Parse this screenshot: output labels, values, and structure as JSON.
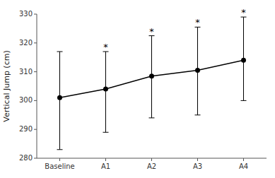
{
  "chart_data": {
    "type": "line",
    "ylabel": "Vertical Jump (cm)",
    "categories": [
      "Baseline",
      "A1",
      "A2",
      "A3",
      "A4"
    ],
    "values": [
      301.0,
      304.0,
      308.5,
      310.5,
      314.0
    ],
    "upper_errors": [
      16.0,
      13.0,
      14.0,
      15.0,
      15.0
    ],
    "lower_errors": [
      18.0,
      15.0,
      14.5,
      15.5,
      14.0
    ],
    "annotations": [
      {
        "category": "A1",
        "text": "*"
      },
      {
        "category": "A2",
        "text": "*"
      },
      {
        "category": "A3",
        "text": "*"
      },
      {
        "category": "A4",
        "text": "*"
      }
    ],
    "color": "#000000",
    "marker": "circle",
    "ylim": [
      280,
      330
    ],
    "yticks": [
      280,
      290,
      300,
      310,
      320,
      330
    ],
    "grid": false
  }
}
